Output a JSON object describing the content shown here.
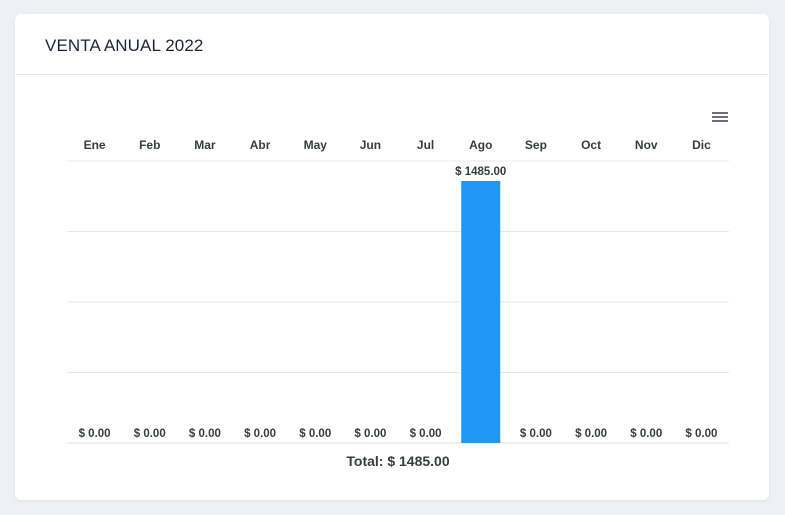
{
  "header": {
    "title": "VENTA ANUAL 2022"
  },
  "chart_data": {
    "type": "bar",
    "categories": [
      "Ene",
      "Feb",
      "Mar",
      "Abr",
      "May",
      "Jun",
      "Jul",
      "Ago",
      "Sep",
      "Oct",
      "Nov",
      "Dic"
    ],
    "values": [
      0,
      0,
      0,
      0,
      0,
      0,
      0,
      1485,
      0,
      0,
      0,
      0
    ],
    "data_labels": [
      "$ 0.00",
      "$ 0.00",
      "$ 0.00",
      "$ 0.00",
      "$ 0.00",
      "$ 0.00",
      "$ 0.00",
      "$ 1485.00",
      "$ 0.00",
      "$ 0.00",
      "$ 0.00",
      "$ 0.00"
    ],
    "xaxis_position": "top",
    "ylim": [
      0,
      1485
    ],
    "grid": true,
    "bar_color": "#2196f3",
    "footer": "Total: $ 1485.00"
  },
  "toolbar": {
    "menu_icon": "hamburger-menu-icon"
  }
}
